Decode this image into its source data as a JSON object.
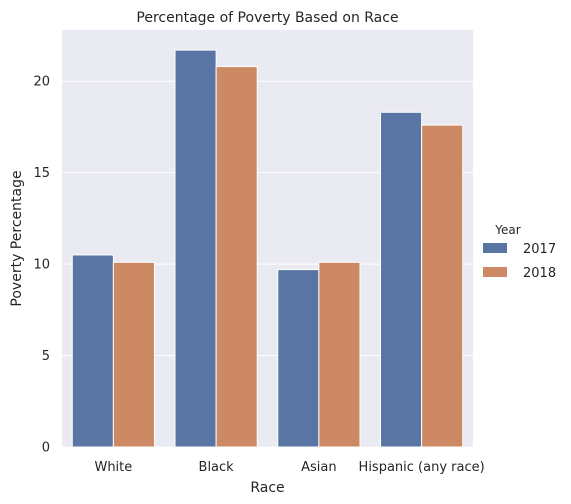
{
  "chart_data": {
    "type": "bar",
    "title": "Percentage of Poverty Based on Race",
    "xlabel": "Race",
    "ylabel": "Poverty Percentage",
    "categories": [
      "White",
      "Black",
      "Asian",
      "Hispanic (any race)"
    ],
    "series": [
      {
        "name": "2017",
        "values": [
          10.5,
          21.7,
          9.7,
          18.3
        ],
        "color": "#5875a4"
      },
      {
        "name": "2018",
        "values": [
          10.1,
          20.8,
          10.1,
          17.6
        ],
        "color": "#cc8963"
      }
    ],
    "ylim": [
      0,
      22.8
    ],
    "yticks": [
      0,
      5,
      10,
      15,
      20
    ],
    "grid": true,
    "legend": {
      "title": "Year",
      "placement": "right"
    },
    "background_color": "#eaeaf2"
  }
}
